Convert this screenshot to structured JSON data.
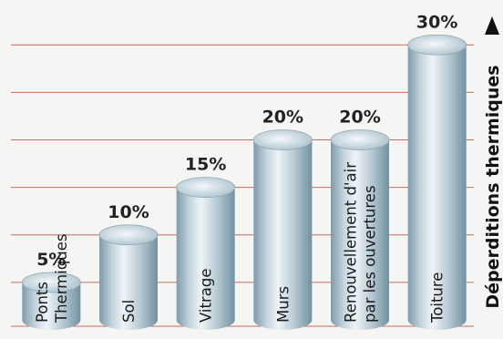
{
  "chart_data": {
    "type": "bar",
    "style": "3d-cylinder",
    "title": "",
    "xlabel": "",
    "ylabel": "Déperditions thermiques",
    "ylim": [
      0,
      33
    ],
    "grid": true,
    "categories": [
      [
        "Ponts",
        "Thermiques"
      ],
      [
        "Sol"
      ],
      [
        "Vitrage"
      ],
      [
        "Murs"
      ],
      [
        "Renouvellement d'air",
        "par les ouvertures"
      ],
      [
        "Toiture"
      ]
    ],
    "values": [
      5,
      10,
      15,
      20,
      20,
      30
    ],
    "value_labels": [
      "5%",
      "10%",
      "15%",
      "20%",
      "20%",
      "30%"
    ],
    "colors": {
      "grid": "#cc6b5a",
      "cylinder_light": "#eef4f7",
      "cylinder_dark": "#7f9aaa"
    }
  }
}
